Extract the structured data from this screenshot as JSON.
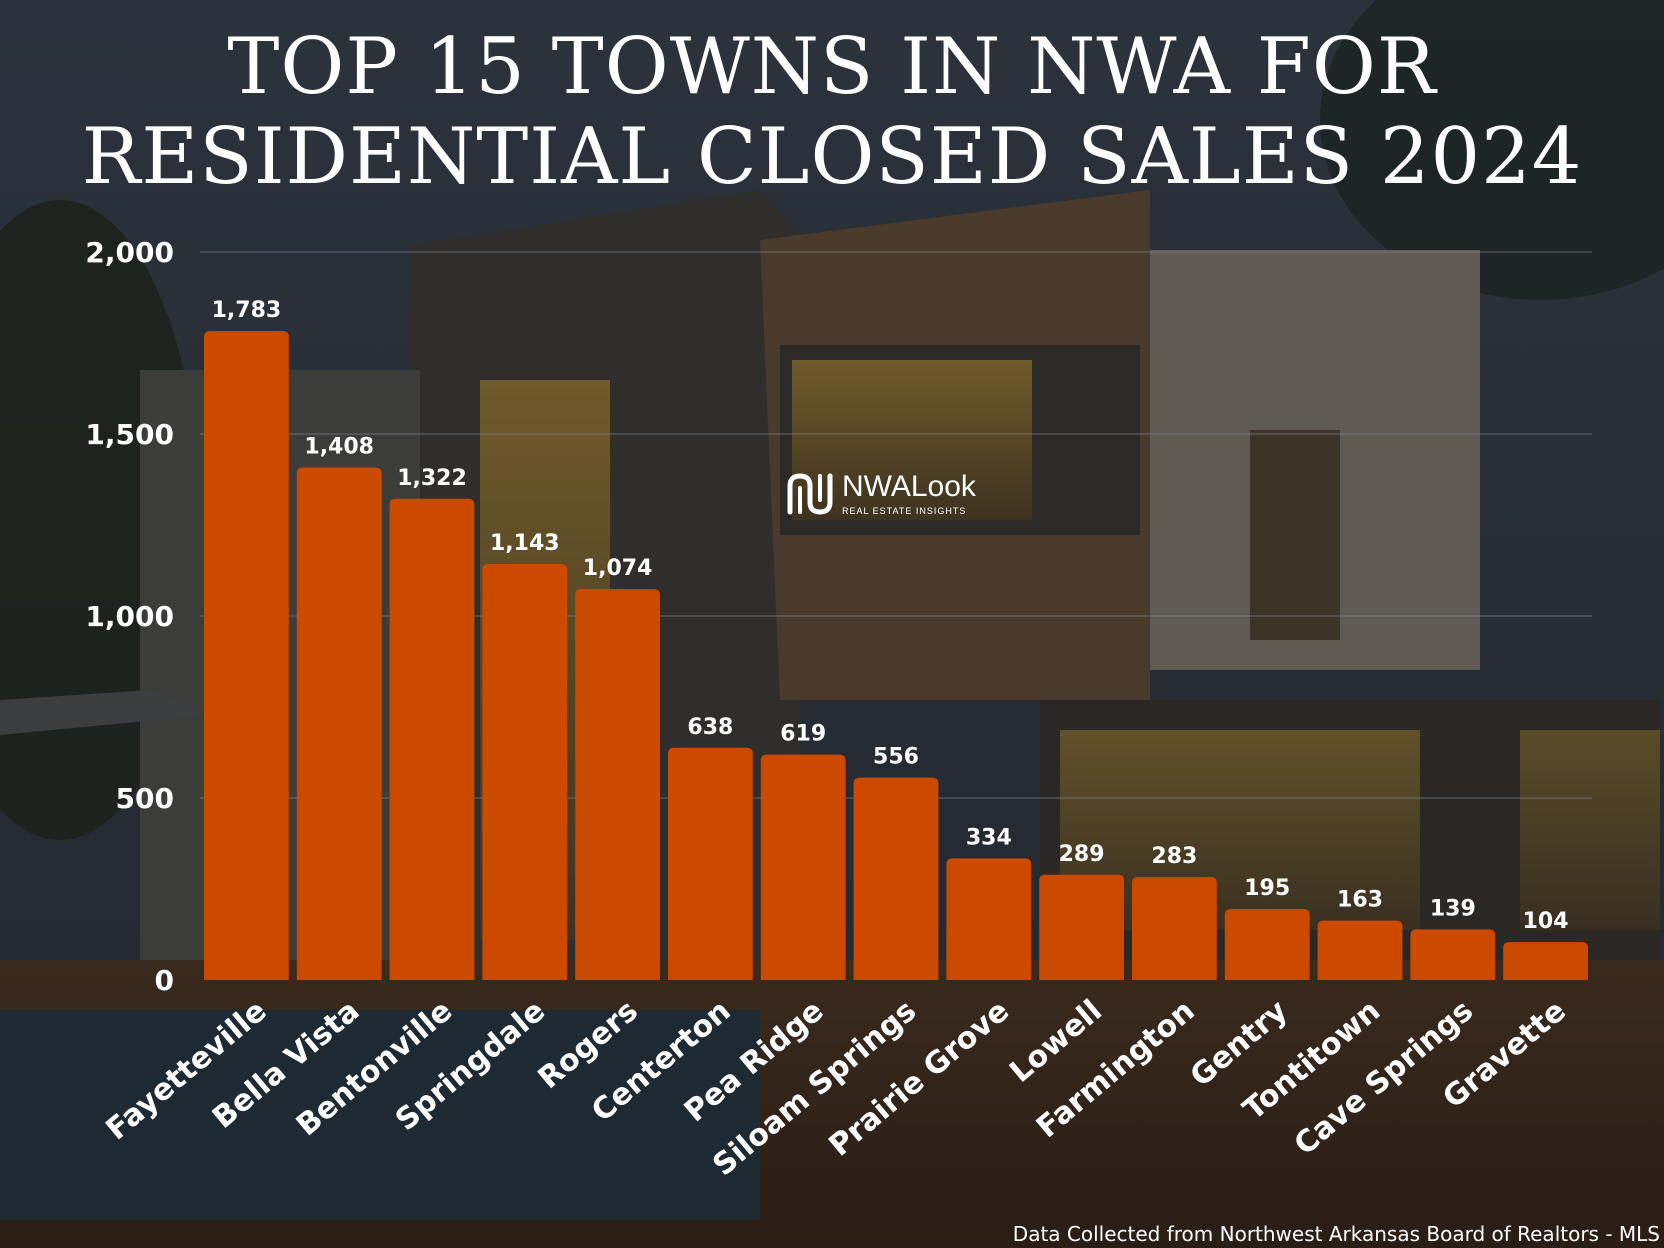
{
  "page": {
    "title_line1": "TOP 15 TOWNS IN NWA FOR",
    "title_line2": "RESIDENTIAL CLOSED SALES 2024",
    "source": "Data Collected from Northwest Arkansas Board of Realtors - MLS",
    "logo_text": "NWALook",
    "logo_subtext": "REAL ESTATE INSIGHTS"
  },
  "colors": {
    "bar": "#cc4a00",
    "text": "#ffffff",
    "grid": "#8a8f97"
  },
  "chart_data": {
    "type": "bar",
    "title": "TOP 15 TOWNS IN NWA FOR RESIDENTIAL CLOSED SALES 2024",
    "categories": [
      "Fayetteville",
      "Bella Vista",
      "Bentonville",
      "Springdale",
      "Rogers",
      "Centerton",
      "Pea Ridge",
      "Siloam Springs",
      "Prairie Grove",
      "Lowell",
      "Farmington",
      "Gentry",
      "Tontitown",
      "Cave Springs",
      "Gravette"
    ],
    "values": [
      1783,
      1408,
      1322,
      1143,
      1074,
      638,
      619,
      556,
      334,
      289,
      283,
      195,
      163,
      139,
      104
    ],
    "value_labels": [
      "1,783",
      "1,408",
      "1,322",
      "1,143",
      "1,074",
      "638",
      "619",
      "556",
      "334",
      "289",
      "283",
      "195",
      "163",
      "139",
      "104"
    ],
    "yticks": [
      0,
      500,
      1000,
      1500,
      2000
    ],
    "ytick_labels": [
      "0",
      "500",
      "1,000",
      "1,500",
      "2,000"
    ],
    "ylim": [
      0,
      2000
    ],
    "grid": true,
    "xlabel": "",
    "ylabel": ""
  }
}
